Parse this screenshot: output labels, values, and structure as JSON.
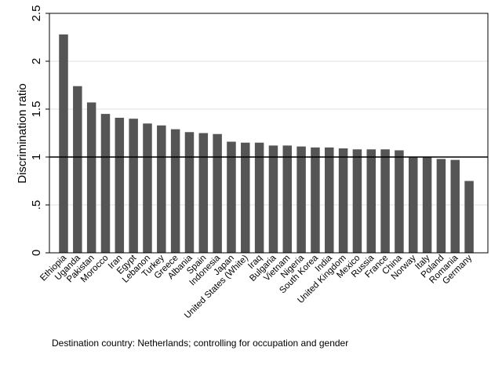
{
  "chart_data": {
    "type": "bar",
    "ylabel": "Discrimination ratio",
    "ylim": [
      0,
      2.5
    ],
    "yticks": [
      {
        "value": 0,
        "label": "0"
      },
      {
        "value": 0.5,
        "label": ".5"
      },
      {
        "value": 1,
        "label": "1"
      },
      {
        "value": 1.5,
        "label": "1.5"
      },
      {
        "value": 2,
        "label": "2"
      },
      {
        "value": 2.5,
        "label": "2.5"
      }
    ],
    "reference_line": 1,
    "grid": true,
    "bar_color": "#555555",
    "categories": [
      "Ethiopia",
      "Uganda",
      "Pakistan",
      "Morocco",
      "Iran",
      "Egypt",
      "Lebanon",
      "Turkey",
      "Greece",
      "Albania",
      "Spain",
      "Indonesia",
      "Japan",
      "United States (White)",
      "Iraq",
      "Bulgaria",
      "Vietnam",
      "Nigeria",
      "South Korea",
      "India",
      "United Kingdom",
      "Mexico",
      "Russia",
      "France",
      "China",
      "Norway",
      "Italy",
      "Poland",
      "Romania",
      "Germany"
    ],
    "values": [
      2.28,
      1.74,
      1.57,
      1.45,
      1.41,
      1.4,
      1.35,
      1.33,
      1.29,
      1.26,
      1.25,
      1.24,
      1.16,
      1.15,
      1.15,
      1.12,
      1.12,
      1.11,
      1.1,
      1.1,
      1.09,
      1.08,
      1.08,
      1.08,
      1.07,
      1.0,
      1.0,
      0.98,
      0.97,
      0.75
    ]
  },
  "note": "Destination country: Netherlands; controlling for occupation and gender"
}
